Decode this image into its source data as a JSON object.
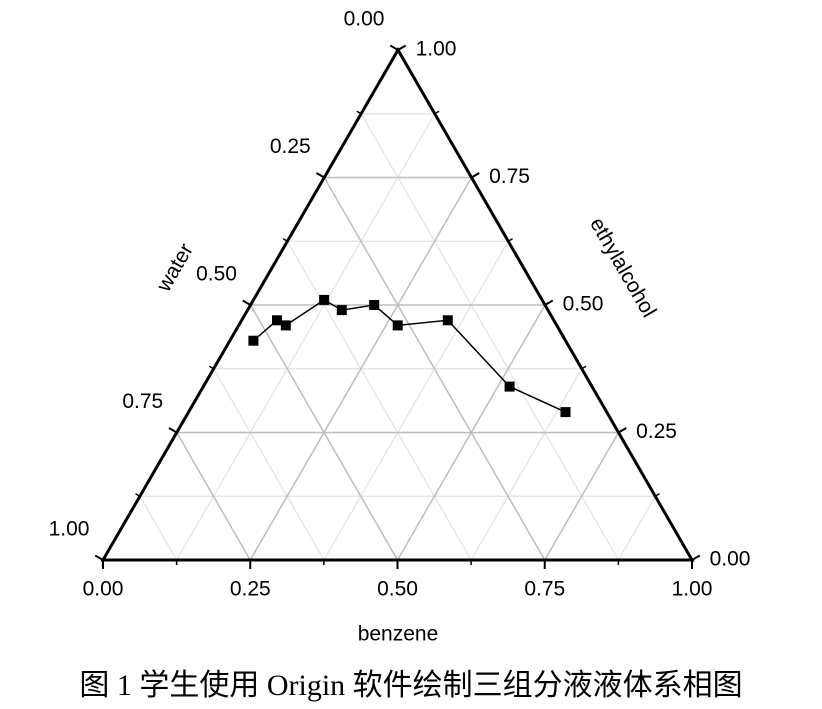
{
  "chart_data": {
    "type": "ternary",
    "axes": {
      "bottom": {
        "title": "benzene",
        "ticks": [
          {
            "value": 0,
            "label": "0.00"
          },
          {
            "value": 0.25,
            "label": "0.25"
          },
          {
            "value": 0.5,
            "label": "0.50"
          },
          {
            "value": 0.75,
            "label": "0.75"
          },
          {
            "value": 1,
            "label": "1.00"
          }
        ]
      },
      "right": {
        "title": "ethylalcohol",
        "ticks": [
          {
            "value": 0,
            "label": "0.00"
          },
          {
            "value": 0.25,
            "label": "0.25"
          },
          {
            "value": 0.5,
            "label": "0.50"
          },
          {
            "value": 0.75,
            "label": "0.75"
          },
          {
            "value": 1,
            "label": "1.00"
          }
        ]
      },
      "left": {
        "title": "water",
        "ticks": [
          {
            "value": 0,
            "label": "0.00"
          },
          {
            "value": 0.25,
            "label": "0.25"
          },
          {
            "value": 0.5,
            "label": "0.50"
          },
          {
            "value": 0.75,
            "label": "0.75"
          },
          {
            "value": 1,
            "label": "1.00"
          }
        ]
      }
    },
    "series": [
      {
        "color": "#000000",
        "benzene": [
          0.04,
          0.06,
          0.08,
          0.12,
          0.16,
          0.21,
          0.27,
          0.35,
          0.52,
          0.64
        ],
        "ethylalcohol": [
          0.43,
          0.47,
          0.46,
          0.51,
          0.49,
          0.5,
          0.46,
          0.47,
          0.34,
          0.29
        ],
        "water": [
          0.53,
          0.47,
          0.46,
          0.37,
          0.35,
          0.29,
          0.27,
          0.18,
          0.14,
          0.07
        ]
      }
    ],
    "grid": true
  },
  "caption": "图 1 学生使用 Origin 软件绘制三组分液液体系相图"
}
